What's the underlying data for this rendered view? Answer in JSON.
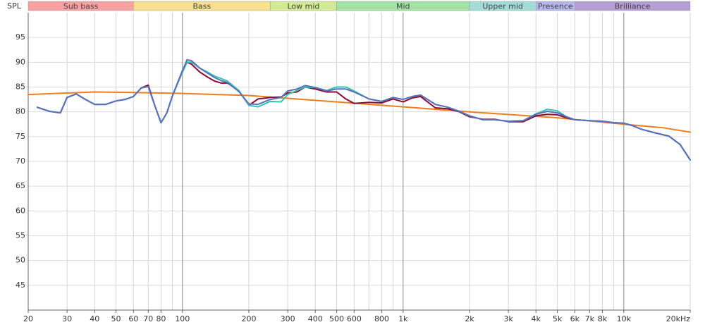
{
  "chart_data": {
    "type": "line",
    "y_axis_label": "SPL",
    "xscale": "log",
    "xlim": [
      20,
      20000
    ],
    "ylim": [
      40,
      100
    ],
    "yticks": [
      45,
      50,
      55,
      60,
      65,
      70,
      75,
      80,
      85,
      90,
      95
    ],
    "xticks": [
      20,
      30,
      40,
      50,
      60,
      70,
      80,
      100,
      200,
      300,
      400,
      500,
      600,
      800,
      {
        "value": 1000,
        "label": "1k"
      },
      {
        "value": 2000,
        "label": "2k"
      },
      {
        "value": 3000,
        "label": "3k"
      },
      {
        "value": 4000,
        "label": "4k"
      },
      {
        "value": 5000,
        "label": "5k"
      },
      {
        "value": 6000,
        "label": "6k"
      },
      {
        "value": 7000,
        "label": "7k"
      },
      {
        "value": 8000,
        "label": "8k"
      },
      {
        "value": 10000,
        "label": "10k"
      },
      {
        "value": 20000,
        "label": "20kHz"
      }
    ],
    "xgrid_unlabeled": [
      90,
      700,
      900,
      9000
    ],
    "grid": true,
    "bands": [
      {
        "label": "Sub bass",
        "from": 20,
        "to": 60,
        "color": "#f7a1a1"
      },
      {
        "label": "Bass",
        "from": 60,
        "to": 250,
        "color": "#f8e08e"
      },
      {
        "label": "Low mid",
        "from": 250,
        "to": 500,
        "color": "#d2ea93"
      },
      {
        "label": "Mid",
        "from": 500,
        "to": 2000,
        "color": "#a2e2a2"
      },
      {
        "label": "Upper mid",
        "from": 2000,
        "to": 4000,
        "color": "#a2dcd6"
      },
      {
        "label": "Presence",
        "from": 4000,
        "to": 6000,
        "color": "#b6b6ee"
      },
      {
        "label": "Brilliance",
        "from": 6000,
        "to": 20000,
        "color": "#b59ed6"
      }
    ],
    "series": [
      {
        "color": "#ee7d1f",
        "x": [
          20,
          40,
          60,
          100,
          200,
          500,
          1000,
          2000,
          5000,
          10000,
          15000,
          20000
        ],
        "values": [
          83.5,
          84.0,
          83.9,
          83.7,
          83.3,
          82.0,
          81.0,
          80.0,
          78.8,
          77.5,
          76.8,
          75.9
        ]
      },
      {
        "color": "#8b0a2e",
        "x": [
          22,
          25,
          28,
          30,
          33,
          36,
          40,
          45,
          50,
          55,
          60,
          65,
          70,
          75,
          80,
          85,
          90,
          100,
          105,
          110,
          120,
          130,
          140,
          150,
          160,
          180,
          200,
          220,
          250,
          280,
          300,
          330,
          360,
          400,
          450,
          500,
          550,
          600,
          700,
          800,
          900,
          1000,
          1100,
          1200,
          1400,
          1600,
          1800,
          2000,
          2300,
          2600,
          3000,
          3500,
          4000,
          4500,
          5000,
          5500,
          6000,
          7000,
          8000,
          9000,
          10000,
          11000,
          12000,
          14000,
          16000,
          18000,
          20000
        ],
        "values": [
          80.9,
          80.1,
          79.8,
          82.9,
          83.6,
          82.6,
          81.5,
          81.5,
          82.2,
          82.5,
          83.1,
          84.8,
          85.4,
          81.2,
          77.8,
          79.8,
          83.2,
          88.3,
          90.0,
          89.6,
          88.0,
          87.0,
          86.2,
          85.8,
          85.8,
          84.3,
          81.3,
          82.6,
          82.9,
          83.0,
          83.8,
          84.0,
          85.0,
          84.6,
          84.0,
          84.0,
          82.6,
          81.7,
          81.9,
          81.8,
          82.6,
          82.0,
          82.8,
          83.1,
          80.8,
          80.6,
          80.0,
          79.0,
          78.5,
          78.5,
          78.0,
          78.0,
          79.2,
          79.5,
          79.4,
          78.8,
          78.4,
          78.2,
          78.1,
          77.8,
          77.7,
          77.2,
          76.5,
          75.7,
          75.1,
          73.4,
          70.3
        ]
      },
      {
        "color": "#2fc9a8",
        "x": [
          22,
          25,
          28,
          30,
          33,
          36,
          40,
          45,
          50,
          55,
          60,
          65,
          70,
          75,
          80,
          85,
          90,
          100,
          105,
          110,
          120,
          130,
          140,
          150,
          160,
          180,
          200,
          220,
          250,
          280,
          300,
          330,
          360,
          400,
          450,
          500,
          550,
          600,
          700,
          800,
          900,
          1000,
          1100,
          1200,
          1400,
          1600,
          1800,
          2000,
          2300,
          2600,
          3000,
          3500,
          4000,
          4500,
          5000,
          5500,
          6000,
          7000,
          8000,
          9000,
          10000,
          11000,
          12000,
          14000,
          16000,
          18000,
          20000
        ],
        "values": [
          80.9,
          80.1,
          79.8,
          82.9,
          83.6,
          82.6,
          81.5,
          81.5,
          82.2,
          82.5,
          83.1,
          84.8,
          85.1,
          81.2,
          77.8,
          79.8,
          83.2,
          88.0,
          90.0,
          90.0,
          88.8,
          88.0,
          87.2,
          86.7,
          86.2,
          84.3,
          81.3,
          81.0,
          82.1,
          82.0,
          83.5,
          84.3,
          85.0,
          84.9,
          84.3,
          85.0,
          85.0,
          84.2,
          82.6,
          82.1,
          82.9,
          82.5,
          83.1,
          83.4,
          81.5,
          80.9,
          80.1,
          79.2,
          78.4,
          78.4,
          78.1,
          78.2,
          79.6,
          80.5,
          80.2,
          79.0,
          78.4,
          78.2,
          78.1,
          77.8,
          77.7,
          77.2,
          76.5,
          75.7,
          75.1,
          73.4,
          70.3
        ]
      },
      {
        "color": "#5a6fc0",
        "x": [
          22,
          25,
          28,
          30,
          33,
          36,
          40,
          45,
          50,
          55,
          60,
          65,
          70,
          75,
          80,
          85,
          90,
          100,
          105,
          110,
          120,
          130,
          140,
          150,
          160,
          180,
          200,
          220,
          250,
          280,
          300,
          330,
          360,
          400,
          450,
          500,
          550,
          600,
          700,
          800,
          900,
          1000,
          1100,
          1200,
          1400,
          1600,
          1800,
          2000,
          2300,
          2600,
          3000,
          3500,
          4000,
          4500,
          5000,
          5500,
          6000,
          7000,
          8000,
          9000,
          10000,
          11000,
          12000,
          14000,
          16000,
          18000,
          20000
        ],
        "values": [
          80.9,
          80.1,
          79.8,
          82.9,
          83.6,
          82.6,
          81.5,
          81.5,
          82.2,
          82.5,
          83.1,
          84.8,
          85.1,
          81.2,
          77.8,
          79.8,
          83.2,
          88.3,
          90.5,
          90.3,
          88.8,
          87.8,
          86.9,
          86.3,
          85.9,
          84.1,
          81.6,
          81.5,
          82.5,
          82.9,
          84.2,
          84.6,
          85.3,
          84.9,
          84.2,
          84.6,
          84.6,
          84.0,
          82.6,
          82.1,
          82.9,
          82.5,
          83.1,
          83.4,
          81.5,
          80.9,
          80.1,
          79.2,
          78.4,
          78.4,
          78.1,
          78.2,
          79.5,
          80.1,
          79.8,
          79.0,
          78.4,
          78.2,
          78.1,
          77.8,
          77.7,
          77.2,
          76.5,
          75.7,
          75.1,
          73.4,
          70.3
        ]
      }
    ]
  }
}
